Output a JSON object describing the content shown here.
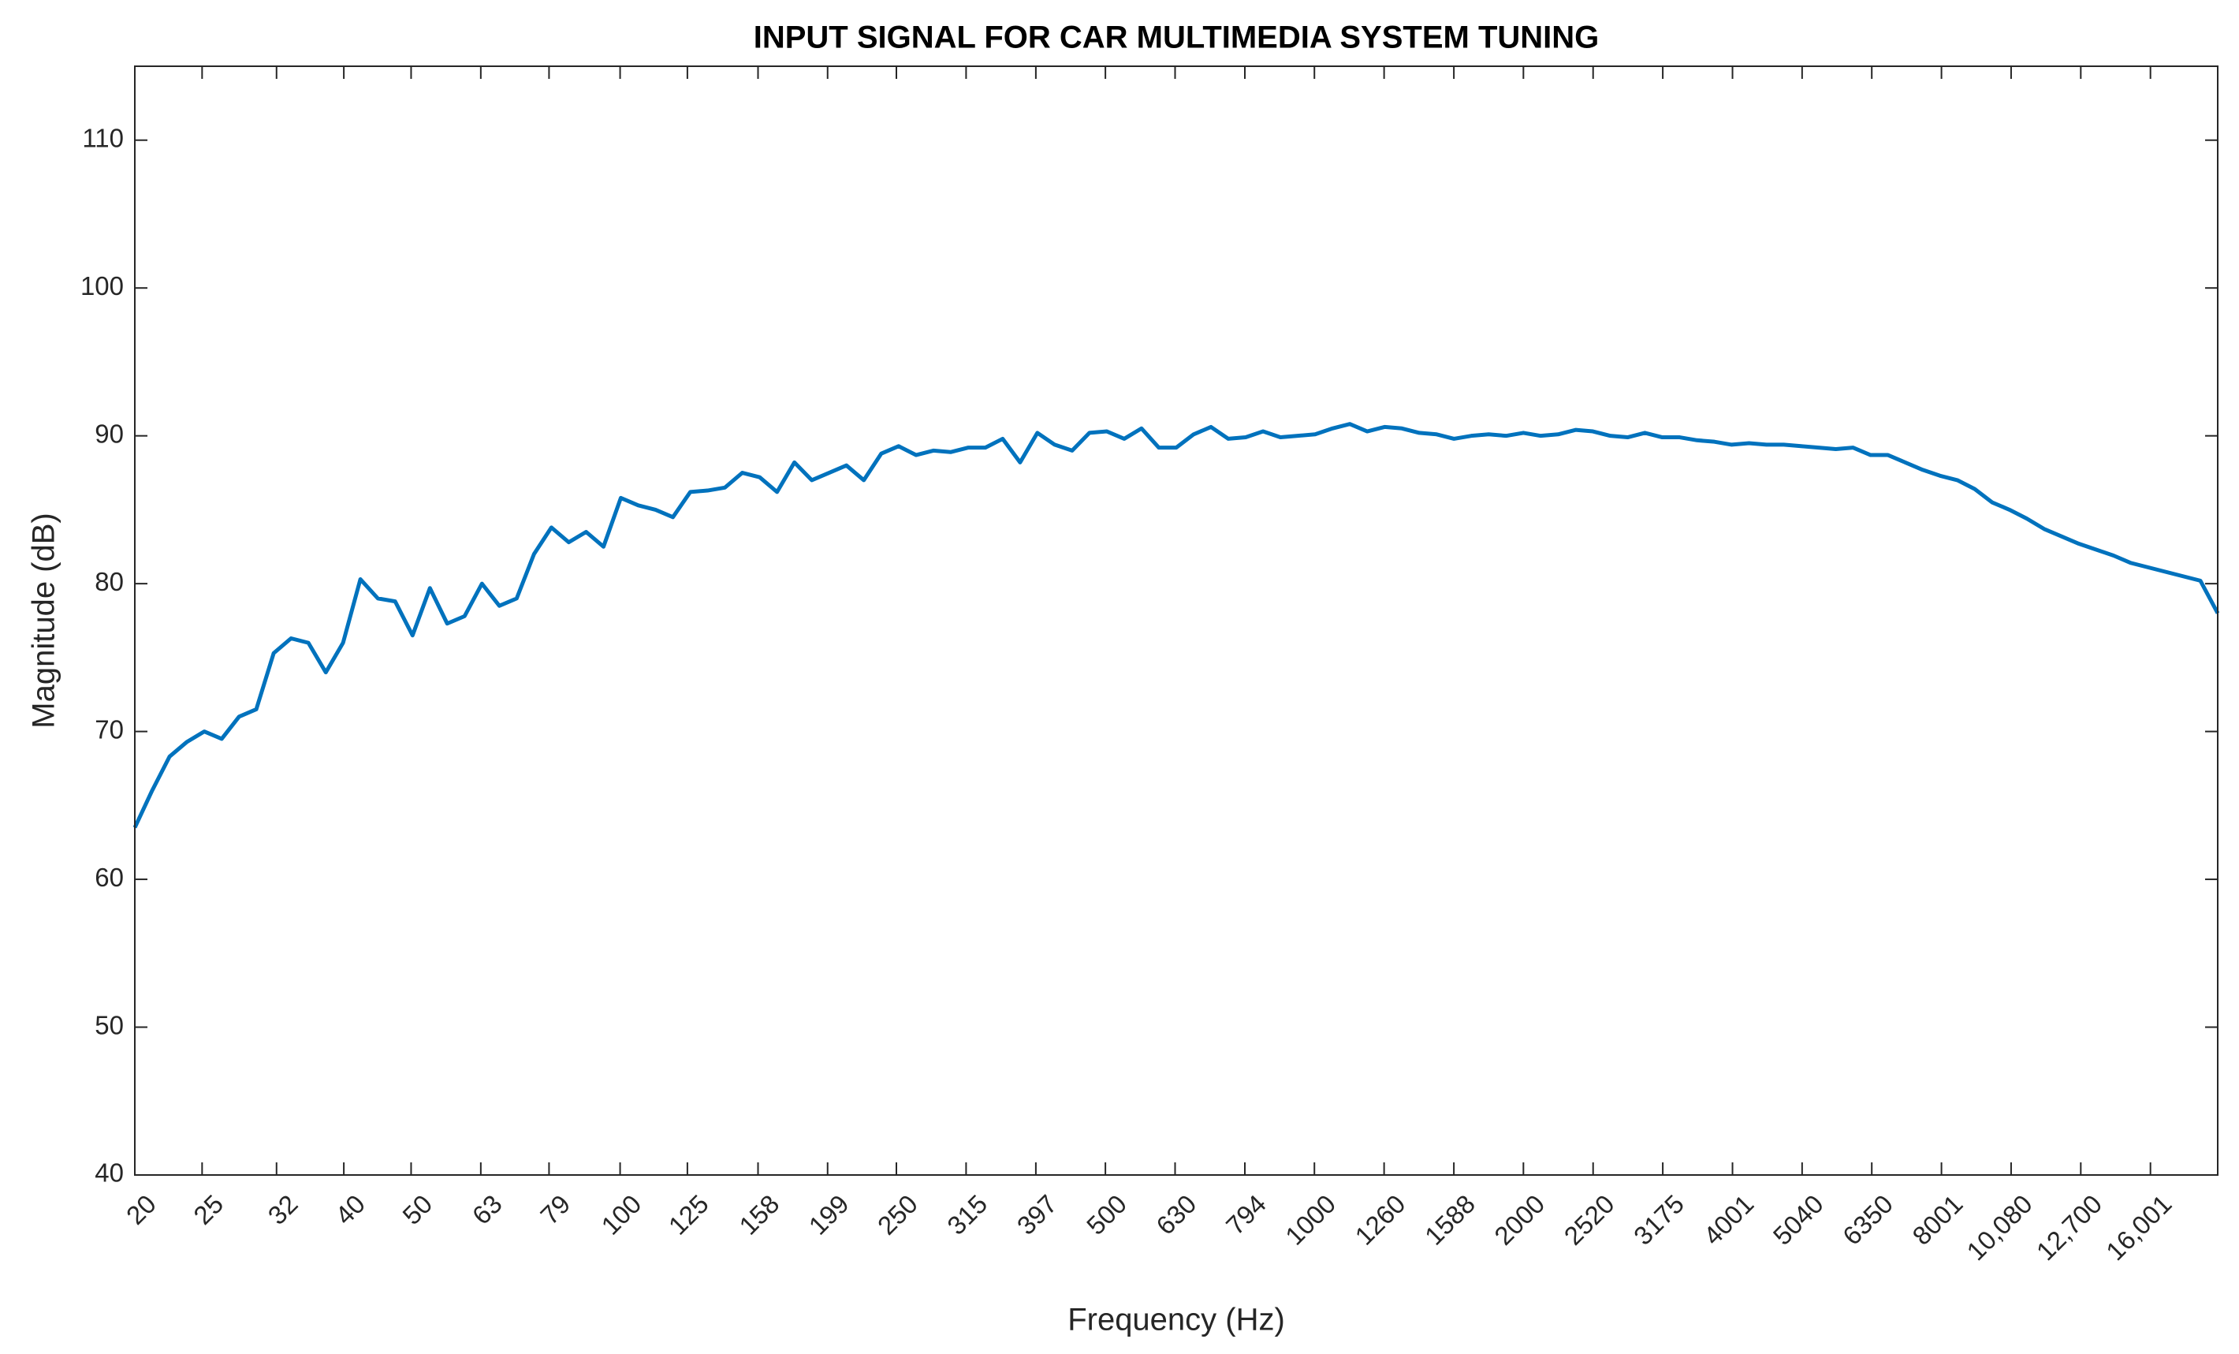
{
  "chart_data": {
    "type": "line",
    "title": "INPUT SIGNAL FOR CAR MULTIMEDIA SYSTEM TUNING",
    "xlabel": "Frequency (Hz)",
    "ylabel": "Magnitude (dB)",
    "xscale": "log",
    "xlim": [
      20,
      20000
    ],
    "ylim": [
      40,
      115
    ],
    "xticks": [
      20,
      25,
      32,
      40,
      50,
      63,
      79,
      100,
      125,
      158,
      199,
      250,
      315,
      397,
      500,
      630,
      794,
      1000,
      1260,
      1588,
      2000,
      2520,
      3175,
      4001,
      5040,
      6350,
      8001,
      {
        "value": 10080,
        "label": "10,080"
      },
      {
        "value": 12700,
        "label": "12,700"
      },
      {
        "value": 16001,
        "label": "16,001"
      }
    ],
    "yticks": [
      40,
      50,
      60,
      70,
      80,
      90,
      100,
      110
    ],
    "x": [
      20,
      21.18,
      22.44,
      23.78,
      25.18,
      26.68,
      28.26,
      29.92,
      31.7,
      33.58,
      35.56,
      37.68,
      39.9,
      42.26,
      44.78,
      47.42,
      50.24,
      53.22,
      56.36,
      59.7,
      63.24,
      67.0,
      70.96,
      75.16,
      79.62,
      84.34,
      89.34,
      94.64,
      100.24,
      106.18,
      112.46,
      119.14,
      126.2,
      133.66,
      141.58,
      149.98,
      158.86,
      168.28,
      178.26,
      188.82,
      200,
      211.8,
      224.4,
      237.8,
      251.8,
      266.8,
      282.6,
      299.2,
      317,
      335.8,
      355.6,
      376.8,
      399,
      422.6,
      447.8,
      474.2,
      502.4,
      532.2,
      563.6,
      597,
      632.4,
      670,
      709.6,
      751.6,
      796.2,
      843.4,
      893.4,
      946.4,
      1002.4,
      1061.8,
      1124.6,
      1191.4,
      1262,
      1336.6,
      1415.8,
      1499.8,
      1588.6,
      1682.8,
      1782.6,
      1888.2,
      2000,
      2118,
      2244,
      2378,
      2518,
      2668,
      2826,
      2992,
      3170,
      3358,
      3556,
      3768,
      3990,
      4226,
      4478,
      4742,
      5024,
      5322,
      5636,
      5970,
      6324,
      6700,
      7096,
      7516,
      7962,
      8434,
      8934,
      9464,
      10024,
      10618,
      11246,
      11914,
      12620,
      13366,
      14158,
      14998,
      15886,
      16828,
      17826,
      18882,
      20000
    ],
    "series": [
      {
        "name": "Magnitude",
        "color": "#0072bd",
        "values": [
          63.5,
          66,
          68.3,
          69.3,
          70,
          69.5,
          71,
          71.5,
          75.3,
          76.3,
          76,
          74,
          76,
          80.3,
          79,
          78.8,
          76.5,
          79.7,
          77.3,
          77.8,
          80,
          78.5,
          79,
          82,
          83.8,
          82.8,
          83.5,
          82.5,
          85.8,
          85.3,
          85,
          84.5,
          86.2,
          86.3,
          86.5,
          87.5,
          87.2,
          86.2,
          88.2,
          87,
          87.5,
          88,
          87,
          88.8,
          89.3,
          88.7,
          89,
          88.9,
          89.2,
          89.2,
          89.8,
          88.2,
          90.2,
          89.4,
          89,
          90.2,
          90.3,
          89.8,
          90.5,
          89.2,
          89.2,
          90.1,
          90.6,
          89.8,
          89.9,
          90.3,
          89.9,
          90,
          90.1,
          90.5,
          90.8,
          90.3,
          90.6,
          90.5,
          90.2,
          90.1,
          89.8,
          90,
          90.1,
          90,
          90.2,
          90,
          90.1,
          90.4,
          90.3,
          90,
          89.9,
          90.2,
          89.9,
          89.9,
          89.7,
          89.6,
          89.4,
          89.5,
          89.4,
          89.4,
          89.3,
          89.2,
          89.1,
          89.2,
          88.7,
          88.7,
          88.2,
          87.7,
          87.3,
          87,
          86.4,
          85.5,
          85,
          84.4,
          83.7,
          83.2,
          82.7,
          82.3,
          81.9,
          81.4,
          81.1,
          80.8,
          80.5,
          80.2,
          78
        ]
      }
    ]
  }
}
